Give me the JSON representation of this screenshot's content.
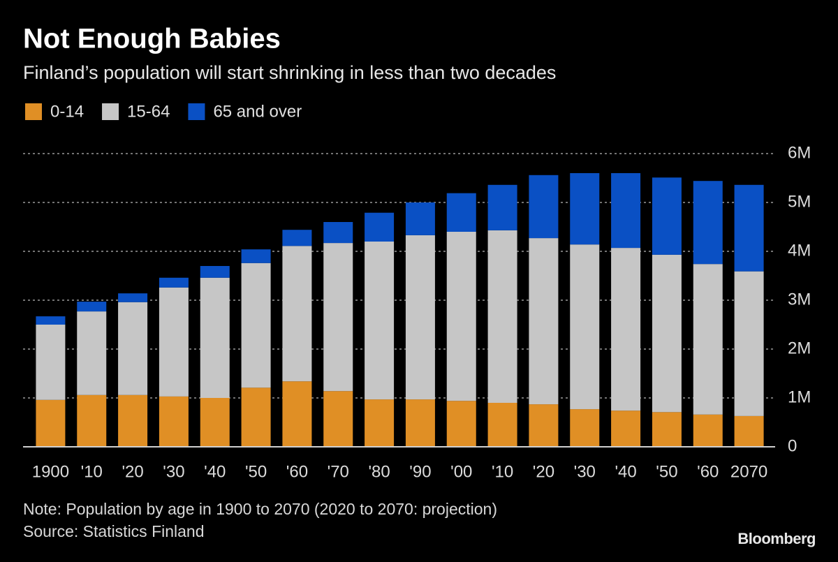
{
  "chart_data": {
    "type": "stacked-bar",
    "title": "Not Enough Babies",
    "subtitle": "Finland’s population will start shrinking in less than two decades",
    "categories": [
      "1900",
      "'10",
      "'20",
      "'30",
      "'40",
      "'50",
      "'60",
      "'70",
      "'80",
      "'90",
      "'00",
      "'10",
      "'20",
      "'30",
      "'40",
      "'50",
      "'60",
      "2070"
    ],
    "series": [
      {
        "name": "0-14",
        "color": "#e08f25",
        "values": [
          0.96,
          1.06,
          1.06,
          1.03,
          1.0,
          1.21,
          1.34,
          1.14,
          0.97,
          0.97,
          0.94,
          0.9,
          0.87,
          0.77,
          0.74,
          0.71,
          0.66,
          0.63
        ]
      },
      {
        "name": "15-64",
        "color": "#c6c6c6",
        "values": [
          1.54,
          1.71,
          1.9,
          2.23,
          2.46,
          2.55,
          2.77,
          3.03,
          3.23,
          3.36,
          3.46,
          3.53,
          3.4,
          3.37,
          3.33,
          3.22,
          3.08,
          2.96
        ]
      },
      {
        "name": "65 and over",
        "color": "#0a50c4",
        "values": [
          0.17,
          0.2,
          0.18,
          0.2,
          0.24,
          0.28,
          0.33,
          0.43,
          0.59,
          0.67,
          0.79,
          0.93,
          1.29,
          1.46,
          1.53,
          1.58,
          1.7,
          1.77
        ]
      }
    ],
    "ylim": [
      0,
      6
    ],
    "yticks": [
      0,
      {
        "value": 1,
        "label": "1M"
      },
      {
        "value": 2,
        "label": "2M"
      },
      {
        "value": 3,
        "label": "3M"
      },
      {
        "value": 4,
        "label": "4M"
      },
      {
        "value": 5,
        "label": "5M"
      },
      {
        "value": 6,
        "label": "6M"
      }
    ],
    "grid": true,
    "note": "Note: Population by age in 1900 to 2070 (2020 to 2070: projection)",
    "source": "Source: Statistics Finland",
    "logo": "Bloomberg"
  }
}
